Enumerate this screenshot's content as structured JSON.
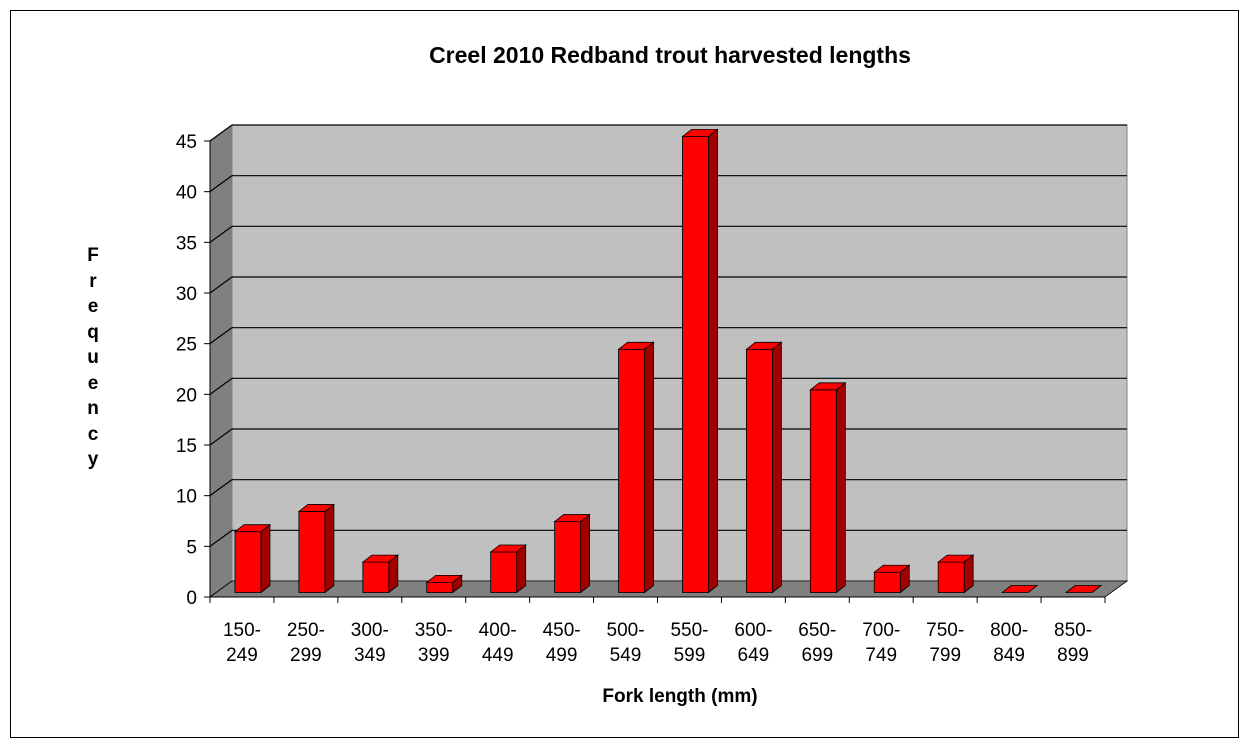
{
  "chart_data": {
    "type": "bar3d",
    "title": "Creel 2010 Redband trout harvested lengths",
    "x_label": "Fork length (mm)",
    "y_label": "Frequency",
    "categories": [
      "150-249",
      "250-299",
      "300-349",
      "350-399",
      "400-449",
      "450-499",
      "500-549",
      "550-599",
      "600-649",
      "650-699",
      "700-749",
      "750-799",
      "800-849",
      "850-899"
    ],
    "values": [
      6,
      8,
      3,
      1,
      4,
      7,
      24,
      45,
      24,
      20,
      2,
      3,
      0,
      0
    ],
    "color": "#ff0000",
    "ylim": [
      0,
      45
    ],
    "yticks": [
      0,
      5,
      10,
      15,
      20,
      25,
      30,
      35,
      40,
      45
    ],
    "grid": true
  }
}
